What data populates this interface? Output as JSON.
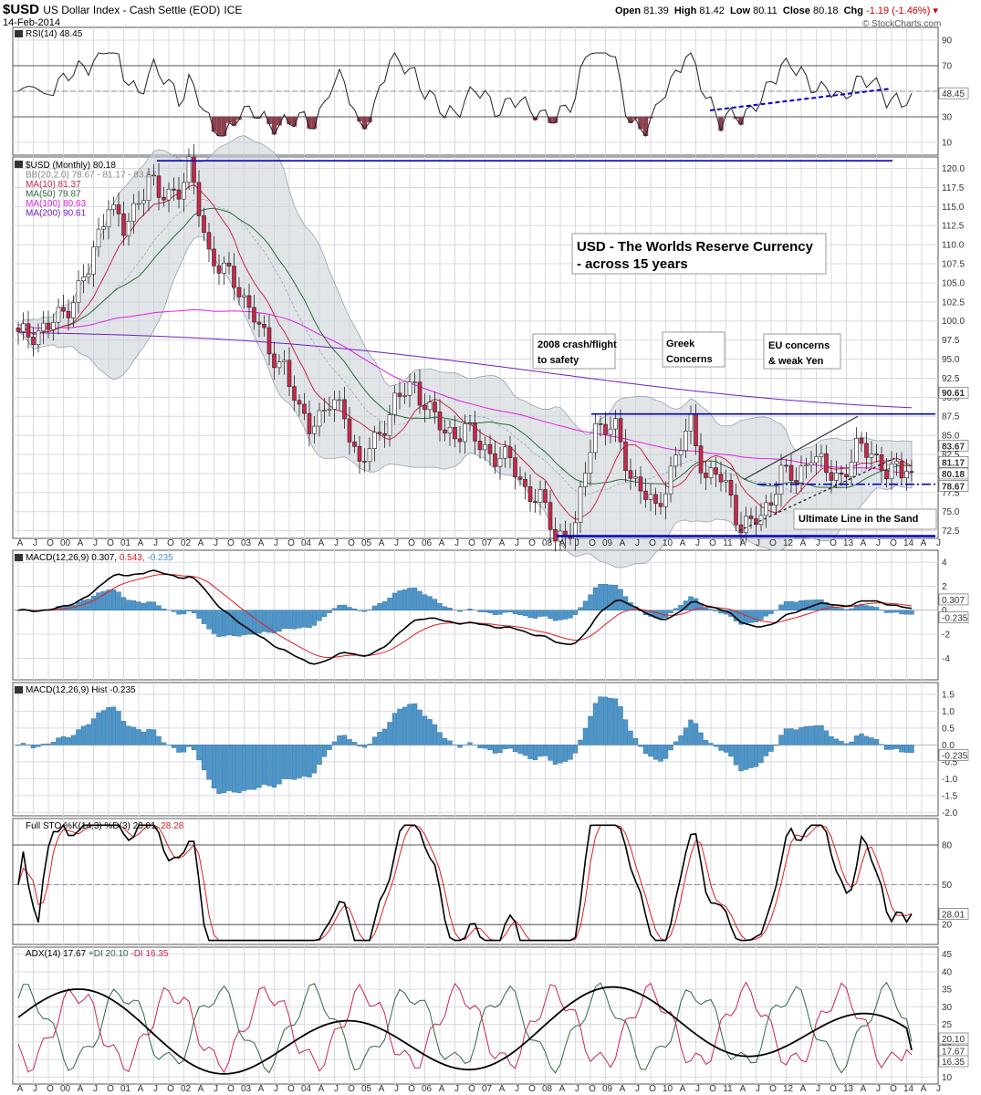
{
  "header": {
    "symbol": "$USD",
    "name": "US Dollar Index - Cash Settle (EOD)",
    "exchange": "ICE",
    "date": "14-Feb-2014",
    "open_label": "Open",
    "open": "81.39",
    "high_label": "High",
    "high": "81.42",
    "low_label": "Low",
    "low": "80.11",
    "close_label": "Close",
    "close": "80.18",
    "chg_label": "Chg",
    "chg": "-1.19 (-1.46%)",
    "watermark": "© StockCharts.com"
  },
  "colors": {
    "up": "#ffffff",
    "down": "#c8284b",
    "ma10": "#c8284b",
    "ma50": "#2e6b3c",
    "ma100": "#e020e0",
    "ma200": "#7020c0",
    "bb_fill": "#c8cfd6",
    "hist": "#4e95c8",
    "support": "#0000c0"
  },
  "x_axis": {
    "labels": [
      "A",
      "J",
      "O",
      "00",
      "A",
      "J",
      "O",
      "01",
      "A",
      "J",
      "O",
      "02",
      "A",
      "J",
      "O",
      "03",
      "A",
      "J",
      "O",
      "04",
      "A",
      "J",
      "O",
      "05",
      "A",
      "J",
      "O",
      "06",
      "A",
      "J",
      "O",
      "07",
      "A",
      "J",
      "O",
      "08",
      "A",
      "J",
      "O",
      "09",
      "A",
      "J",
      "O",
      "10",
      "A",
      "J",
      "O",
      "11",
      "A",
      "J",
      "O",
      "12",
      "A",
      "J",
      "O",
      "13",
      "A",
      "J",
      "O",
      "14",
      "A",
      "J"
    ]
  },
  "panels": {
    "rsi": {
      "label": "RSI(14) 48.45",
      "ticks": [
        "90",
        "70",
        "50",
        "30",
        "10"
      ],
      "last": "48.45"
    },
    "price": {
      "legend": {
        "title": "$USD (Monthly) 80.18",
        "bb": "BB(20,2.0) 78.67 - 81.17 - 83.67",
        "ma10": "MA(10) 81.37",
        "ma50": "MA(50) 79.87",
        "ma100": "MA(100) 80.63",
        "ma200": "MA(200) 90.61"
      },
      "ticks": [
        "120.0",
        "117.5",
        "115.0",
        "112.5",
        "110.0",
        "107.5",
        "105.0",
        "102.5",
        "100.0",
        "97.5",
        "95.0",
        "92.5",
        "90.0",
        "87.5",
        "85.0",
        "82.5",
        "80.0",
        "77.5",
        "75.0",
        "72.5"
      ],
      "badges": [
        "90.61",
        "83.67",
        "81.17",
        "80.18",
        "78.67"
      ],
      "annotations": {
        "title1": "USD - The Worlds Reserve Currency",
        "title2": "- across 15 years",
        "crash1": "2008 crash/flight",
        "crash2": "to safety",
        "greek1": "Greek",
        "greek2": "Concerns",
        "eu1": "EU concerns",
        "eu2": "& weak Yen",
        "line_in_sand": "Ultimate Line in the Sand"
      }
    },
    "macd": {
      "label_main": "MACD(12,26,9) 0.307,",
      "label_signal": "0.543,",
      "label_hist": "-0.235",
      "ticks": [
        "4",
        "2",
        "0",
        "-2",
        "-4"
      ],
      "badges": [
        "0.307",
        "-0.235"
      ]
    },
    "macdh": {
      "label": "MACD(12,26,9) Hist -0.235",
      "ticks": [
        "1.5",
        "1.0",
        "0.5",
        "0.0",
        "-0.5",
        "-1.0",
        "-1.5",
        "-2.0"
      ],
      "badge": "-0.235"
    },
    "sto": {
      "label_main": "Full STO %K(14,3) %D(3) 28.01,",
      "label_d": "28.28",
      "ticks": [
        "80",
        "50",
        "20"
      ],
      "badge": "28.01"
    },
    "adx": {
      "label_main": "ADX(14) 17.67",
      "label_plus": "+DI 20.10",
      "label_minus": "-DI 16.35",
      "ticks": [
        "45",
        "40",
        "35",
        "30",
        "25",
        "20",
        "15",
        "10"
      ],
      "badges": [
        "20.10",
        "17.67",
        "16.35"
      ]
    }
  },
  "chart_data": {
    "type": "candlestick",
    "title": "$USD (Monthly)",
    "period": [
      "2000-01",
      "2014-02"
    ],
    "price_range": [
      71.5,
      121.5
    ],
    "support_levels": [
      121.0,
      87.8,
      78.6,
      71.8
    ],
    "price_keypoints": [
      [
        "1999-04",
        97.9
      ],
      [
        "1999-10",
        99.2
      ],
      [
        "2000-01",
        101.0
      ],
      [
        "2000-06",
        106.5
      ],
      [
        "2000-10",
        116.0
      ],
      [
        "2001-01",
        111.5
      ],
      [
        "2001-06",
        119.0
      ],
      [
        "2001-08",
        116.0
      ],
      [
        "2001-12",
        117.5
      ],
      [
        "2002-02",
        120.0
      ],
      [
        "2002-06",
        109.0
      ],
      [
        "2002-09",
        106.5
      ],
      [
        "2002-12",
        104.0
      ],
      [
        "2003-03",
        101.0
      ],
      [
        "2003-06",
        95.5
      ],
      [
        "2003-09",
        94.5
      ],
      [
        "2003-12",
        87.5
      ],
      [
        "2004-02",
        86.5
      ],
      [
        "2004-06",
        89.0
      ],
      [
        "2004-09",
        88.0
      ],
      [
        "2004-12",
        81.0
      ],
      [
        "2005-03",
        84.0
      ],
      [
        "2005-07",
        89.5
      ],
      [
        "2005-11",
        91.5
      ],
      [
        "2006-01",
        89.5
      ],
      [
        "2006-05",
        85.0
      ],
      [
        "2006-09",
        86.0
      ],
      [
        "2006-12",
        83.5
      ],
      [
        "2007-03",
        82.5
      ],
      [
        "2007-06",
        81.5
      ],
      [
        "2007-09",
        78.0
      ],
      [
        "2007-12",
        76.5
      ],
      [
        "2008-03",
        71.8
      ],
      [
        "2008-07",
        72.8
      ],
      [
        "2008-10",
        84.0
      ],
      [
        "2008-11",
        86.5
      ],
      [
        "2009-03",
        85.5
      ],
      [
        "2009-06",
        80.0
      ],
      [
        "2009-11",
        75.0
      ],
      [
        "2010-02",
        80.5
      ],
      [
        "2010-06",
        86.5
      ],
      [
        "2010-09",
        79.5
      ],
      [
        "2010-11",
        80.0
      ],
      [
        "2011-02",
        77.0
      ],
      [
        "2011-04",
        73.0
      ],
      [
        "2011-08",
        74.0
      ],
      [
        "2011-12",
        80.2
      ],
      [
        "2012-03",
        79.0
      ],
      [
        "2012-06",
        83.0
      ],
      [
        "2012-09",
        79.9
      ],
      [
        "2012-12",
        79.8
      ],
      [
        "2013-03",
        83.0
      ],
      [
        "2013-06",
        83.0
      ],
      [
        "2013-09",
        80.2
      ],
      [
        "2013-12",
        80.0
      ],
      [
        "2014-01",
        81.4
      ],
      [
        "2014-02",
        80.18
      ]
    ],
    "rsi_last": 48.45,
    "macd_last": 0.307,
    "macd_signal_last": 0.543,
    "macd_hist_last": -0.235,
    "sto_k_last": 28.01,
    "sto_d_last": 28.28,
    "adx_last": 17.67,
    "plus_di_last": 20.1,
    "minus_di_last": 16.35
  }
}
